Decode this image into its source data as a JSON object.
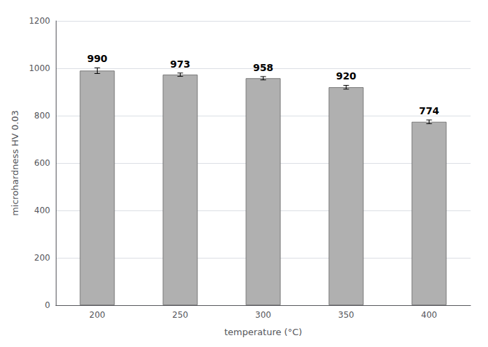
{
  "chart_data": {
    "type": "bar",
    "categories": [
      "200",
      "250",
      "300",
      "350",
      "400"
    ],
    "values": [
      990,
      973,
      958,
      920,
      774
    ],
    "errors": [
      12,
      7,
      7,
      8,
      8
    ],
    "color": "#b0b0b0",
    "xlabel": "temperature (°C)",
    "ylabel": "microhardness HV 0.03",
    "ylim": [
      0,
      1200
    ],
    "yticks": [
      0,
      200,
      400,
      600,
      800,
      1000,
      1200
    ],
    "grid": true,
    "data_labels": true
  }
}
